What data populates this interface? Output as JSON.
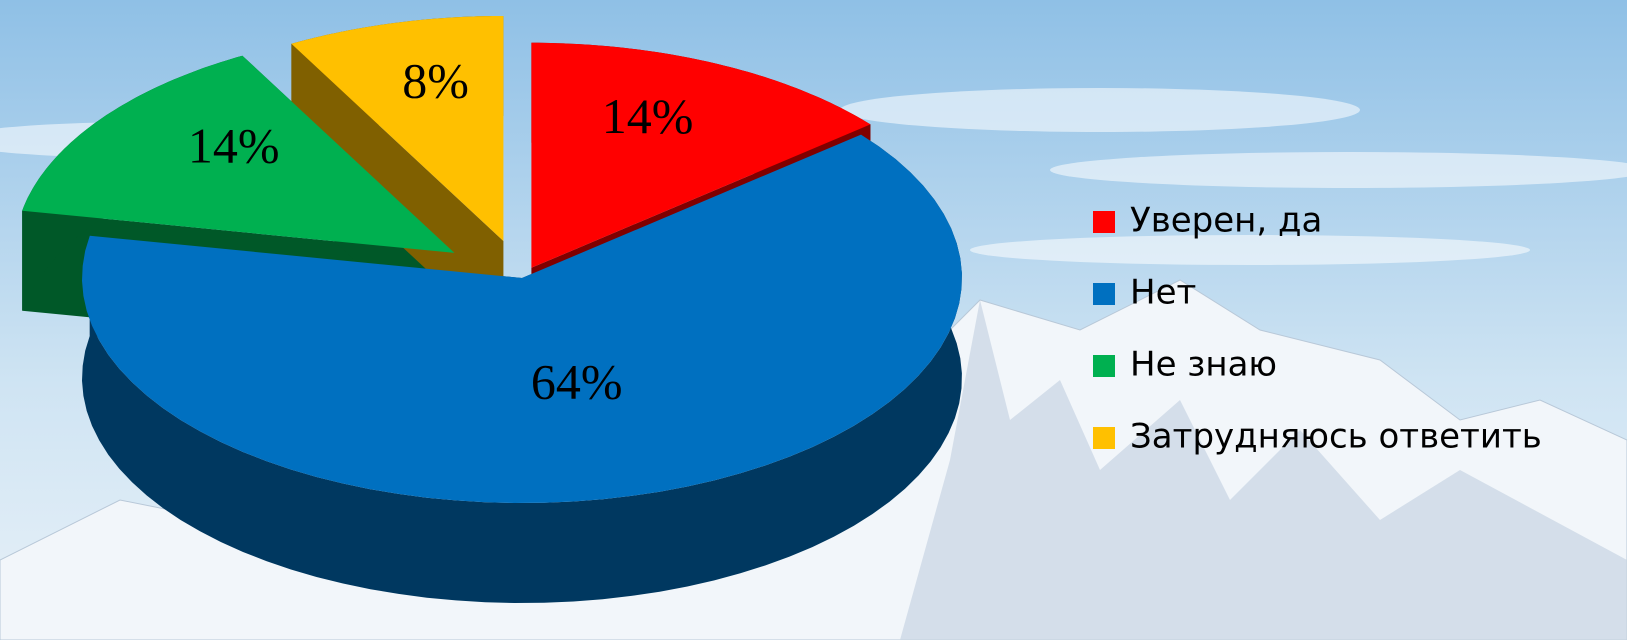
{
  "chart_data": {
    "type": "pie3d",
    "categories": [
      "Уверен, да",
      "Нет",
      "Не знаю",
      "Затрудняюсь ответить"
    ],
    "values": [
      14,
      64,
      14,
      8
    ],
    "value_labels": [
      "14%",
      "64%",
      "14%",
      "8%"
    ],
    "colors": [
      "#ff0000",
      "#0070c0",
      "#00b050",
      "#ffc000"
    ],
    "legend": "right"
  }
}
